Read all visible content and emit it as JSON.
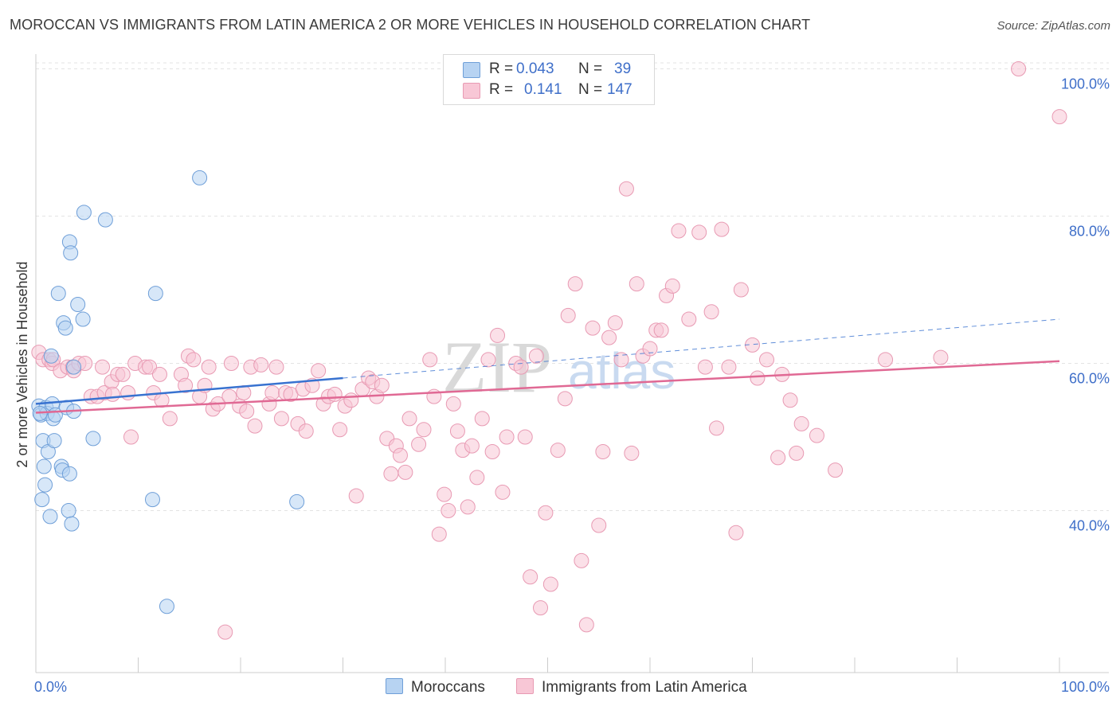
{
  "title": "MOROCCAN VS IMMIGRANTS FROM LATIN AMERICA 2 OR MORE VEHICLES IN HOUSEHOLD CORRELATION CHART",
  "source": "Source: ZipAtlas.com",
  "watermark": {
    "zip": "ZIP",
    "atlas": "atlas"
  },
  "legend": {
    "r_label": "R =",
    "n_label": "N =",
    "moroccan": {
      "r": "0.043",
      "n": "39"
    },
    "latin": {
      "r": "0.141",
      "n": "147"
    }
  },
  "colors": {
    "moroccan_fill": "#b7d3f2",
    "moroccan_stroke": "#6f9fd8",
    "moroccan_line": "#3872d0",
    "latin_fill": "#f8c7d6",
    "latin_stroke": "#e89ab3",
    "latin_line": "#e06994",
    "axis_label": "#3f6fc9"
  },
  "chart_data": {
    "type": "scatter",
    "title": "MOROCCAN VS IMMIGRANTS FROM LATIN AMERICA 2 OR MORE VEHICLES IN HOUSEHOLD CORRELATION CHART",
    "xlabel": "",
    "ylabel": "2 or more Vehicles in Household",
    "xlim": [
      0,
      100
    ],
    "ylim": [
      18,
      102
    ],
    "x_tick_labels": [
      "0.0%",
      "100.0%"
    ],
    "y_ticks": [
      40,
      60,
      80,
      100
    ],
    "y_tick_labels": [
      "40.0%",
      "60.0%",
      "80.0%",
      "100.0%"
    ],
    "grid": true,
    "legend_position": "top-center",
    "series": [
      {
        "name": "Moroccans",
        "r": 0.043,
        "n": 39,
        "trend": {
          "x": [
            0,
            30
          ],
          "y": [
            54.5,
            58.0
          ],
          "dashed_to": [
            100,
            66.0
          ]
        },
        "points": [
          [
            0.3,
            54.2
          ],
          [
            0.5,
            53.0
          ],
          [
            0.6,
            41.5
          ],
          [
            0.7,
            49.5
          ],
          [
            0.8,
            46.0
          ],
          [
            0.9,
            43.5
          ],
          [
            1.0,
            54.0
          ],
          [
            1.1,
            53.2
          ],
          [
            1.2,
            48.0
          ],
          [
            1.4,
            39.2
          ],
          [
            1.5,
            61.0
          ],
          [
            1.6,
            54.5
          ],
          [
            1.7,
            52.5
          ],
          [
            1.8,
            49.5
          ],
          [
            1.9,
            53.0
          ],
          [
            2.2,
            69.5
          ],
          [
            2.5,
            46.0
          ],
          [
            2.6,
            45.5
          ],
          [
            2.7,
            65.5
          ],
          [
            2.9,
            64.8
          ],
          [
            3.0,
            54.0
          ],
          [
            3.2,
            40.0
          ],
          [
            3.3,
            45.0
          ],
          [
            3.3,
            76.5
          ],
          [
            3.4,
            75.0
          ],
          [
            3.5,
            38.2
          ],
          [
            3.7,
            59.5
          ],
          [
            3.7,
            53.5
          ],
          [
            4.1,
            68.0
          ],
          [
            4.6,
            66.0
          ],
          [
            4.7,
            80.5
          ],
          [
            5.6,
            49.8
          ],
          [
            6.8,
            79.5
          ],
          [
            11.4,
            41.5
          ],
          [
            11.7,
            69.5
          ],
          [
            12.8,
            27.0
          ],
          [
            16.0,
            85.2
          ],
          [
            25.5,
            41.2
          ],
          [
            0.4,
            53.2
          ]
        ]
      },
      {
        "name": "Immigrants from Latin America",
        "r": 0.141,
        "n": 147,
        "trend": {
          "x": [
            0,
            100
          ],
          "y": [
            53.3,
            60.3
          ]
        },
        "points": [
          [
            0.3,
            61.5
          ],
          [
            0.7,
            60.5
          ],
          [
            1.3,
            60.5
          ],
          [
            1.6,
            60.0
          ],
          [
            1.7,
            60.5
          ],
          [
            2.4,
            59.0
          ],
          [
            3.1,
            59.5
          ],
          [
            3.6,
            59.5
          ],
          [
            3.7,
            59.0
          ],
          [
            4.2,
            60.0
          ],
          [
            4.8,
            60.0
          ],
          [
            5.4,
            55.5
          ],
          [
            6.0,
            55.5
          ],
          [
            6.5,
            59.5
          ],
          [
            6.7,
            56.0
          ],
          [
            7.4,
            57.5
          ],
          [
            7.5,
            55.8
          ],
          [
            8.0,
            58.5
          ],
          [
            8.5,
            58.5
          ],
          [
            9.0,
            56.0
          ],
          [
            9.3,
            50.0
          ],
          [
            9.7,
            60.0
          ],
          [
            10.7,
            59.5
          ],
          [
            11.1,
            59.5
          ],
          [
            11.5,
            56.0
          ],
          [
            12.1,
            58.5
          ],
          [
            12.3,
            55.0
          ],
          [
            13.1,
            52.5
          ],
          [
            14.2,
            58.5
          ],
          [
            14.6,
            57.0
          ],
          [
            14.9,
            61.0
          ],
          [
            15.4,
            60.5
          ],
          [
            16.0,
            55.5
          ],
          [
            16.5,
            57.0
          ],
          [
            16.9,
            59.5
          ],
          [
            17.3,
            53.8
          ],
          [
            17.8,
            54.5
          ],
          [
            18.5,
            23.5
          ],
          [
            18.9,
            55.5
          ],
          [
            19.1,
            60.0
          ],
          [
            19.9,
            54.2
          ],
          [
            20.3,
            56.0
          ],
          [
            20.6,
            53.5
          ],
          [
            21.0,
            59.5
          ],
          [
            21.4,
            51.5
          ],
          [
            22.0,
            59.8
          ],
          [
            22.8,
            54.5
          ],
          [
            23.1,
            56.0
          ],
          [
            23.5,
            59.5
          ],
          [
            24.0,
            52.5
          ],
          [
            24.4,
            56.0
          ],
          [
            24.9,
            55.8
          ],
          [
            25.6,
            51.8
          ],
          [
            26.1,
            56.5
          ],
          [
            26.4,
            50.8
          ],
          [
            27.0,
            57.0
          ],
          [
            27.6,
            59.0
          ],
          [
            28.1,
            54.5
          ],
          [
            28.6,
            55.5
          ],
          [
            29.2,
            55.8
          ],
          [
            29.7,
            51.0
          ],
          [
            30.2,
            54.2
          ],
          [
            30.8,
            55.0
          ],
          [
            31.3,
            42.0
          ],
          [
            31.9,
            56.5
          ],
          [
            32.5,
            58.0
          ],
          [
            32.9,
            57.5
          ],
          [
            33.3,
            55.5
          ],
          [
            33.8,
            57.0
          ],
          [
            34.3,
            49.8
          ],
          [
            34.7,
            45.0
          ],
          [
            35.2,
            48.8
          ],
          [
            35.6,
            47.5
          ],
          [
            36.1,
            45.2
          ],
          [
            36.5,
            52.5
          ],
          [
            37.4,
            49.0
          ],
          [
            37.9,
            51.0
          ],
          [
            38.5,
            60.5
          ],
          [
            38.9,
            55.5
          ],
          [
            39.4,
            36.8
          ],
          [
            39.9,
            42.2
          ],
          [
            40.3,
            40.0
          ],
          [
            40.8,
            54.5
          ],
          [
            41.2,
            50.8
          ],
          [
            41.7,
            48.2
          ],
          [
            42.2,
            40.5
          ],
          [
            42.6,
            48.8
          ],
          [
            43.1,
            44.5
          ],
          [
            43.6,
            52.5
          ],
          [
            44.2,
            60.5
          ],
          [
            44.6,
            48.0
          ],
          [
            45.1,
            63.8
          ],
          [
            45.6,
            42.5
          ],
          [
            46.0,
            50.0
          ],
          [
            46.9,
            60.0
          ],
          [
            47.4,
            59.5
          ],
          [
            47.8,
            50.0
          ],
          [
            48.3,
            31.0
          ],
          [
            48.9,
            61.0
          ],
          [
            49.3,
            26.8
          ],
          [
            49.8,
            39.7
          ],
          [
            50.3,
            30.0
          ],
          [
            51.0,
            48.2
          ],
          [
            51.7,
            55.2
          ],
          [
            52.0,
            66.5
          ],
          [
            52.7,
            70.8
          ],
          [
            53.3,
            33.2
          ],
          [
            53.8,
            24.5
          ],
          [
            54.4,
            64.8
          ],
          [
            55.0,
            38.0
          ],
          [
            55.4,
            48.0
          ],
          [
            56.0,
            63.5
          ],
          [
            56.6,
            65.5
          ],
          [
            57.2,
            60.5
          ],
          [
            57.7,
            83.7
          ],
          [
            58.2,
            47.8
          ],
          [
            58.7,
            70.8
          ],
          [
            59.3,
            61.0
          ],
          [
            60.0,
            62.0
          ],
          [
            60.6,
            64.5
          ],
          [
            61.1,
            64.5
          ],
          [
            61.6,
            69.2
          ],
          [
            62.2,
            70.5
          ],
          [
            62.8,
            78.0
          ],
          [
            63.8,
            66.0
          ],
          [
            64.8,
            77.8
          ],
          [
            65.4,
            59.5
          ],
          [
            66.0,
            67.0
          ],
          [
            66.5,
            51.2
          ],
          [
            67.0,
            78.2
          ],
          [
            67.7,
            59.5
          ],
          [
            68.4,
            37.0
          ],
          [
            68.9,
            70.0
          ],
          [
            70.0,
            62.5
          ],
          [
            70.5,
            58.0
          ],
          [
            71.4,
            60.5
          ],
          [
            72.5,
            47.2
          ],
          [
            72.9,
            58.5
          ],
          [
            73.7,
            55.0
          ],
          [
            74.3,
            47.8
          ],
          [
            74.8,
            51.8
          ],
          [
            76.3,
            50.2
          ],
          [
            78.1,
            45.5
          ],
          [
            88.4,
            60.8
          ],
          [
            96.0,
            100.0
          ],
          [
            100.0,
            93.5
          ],
          [
            83.0,
            60.5
          ]
        ]
      }
    ]
  }
}
